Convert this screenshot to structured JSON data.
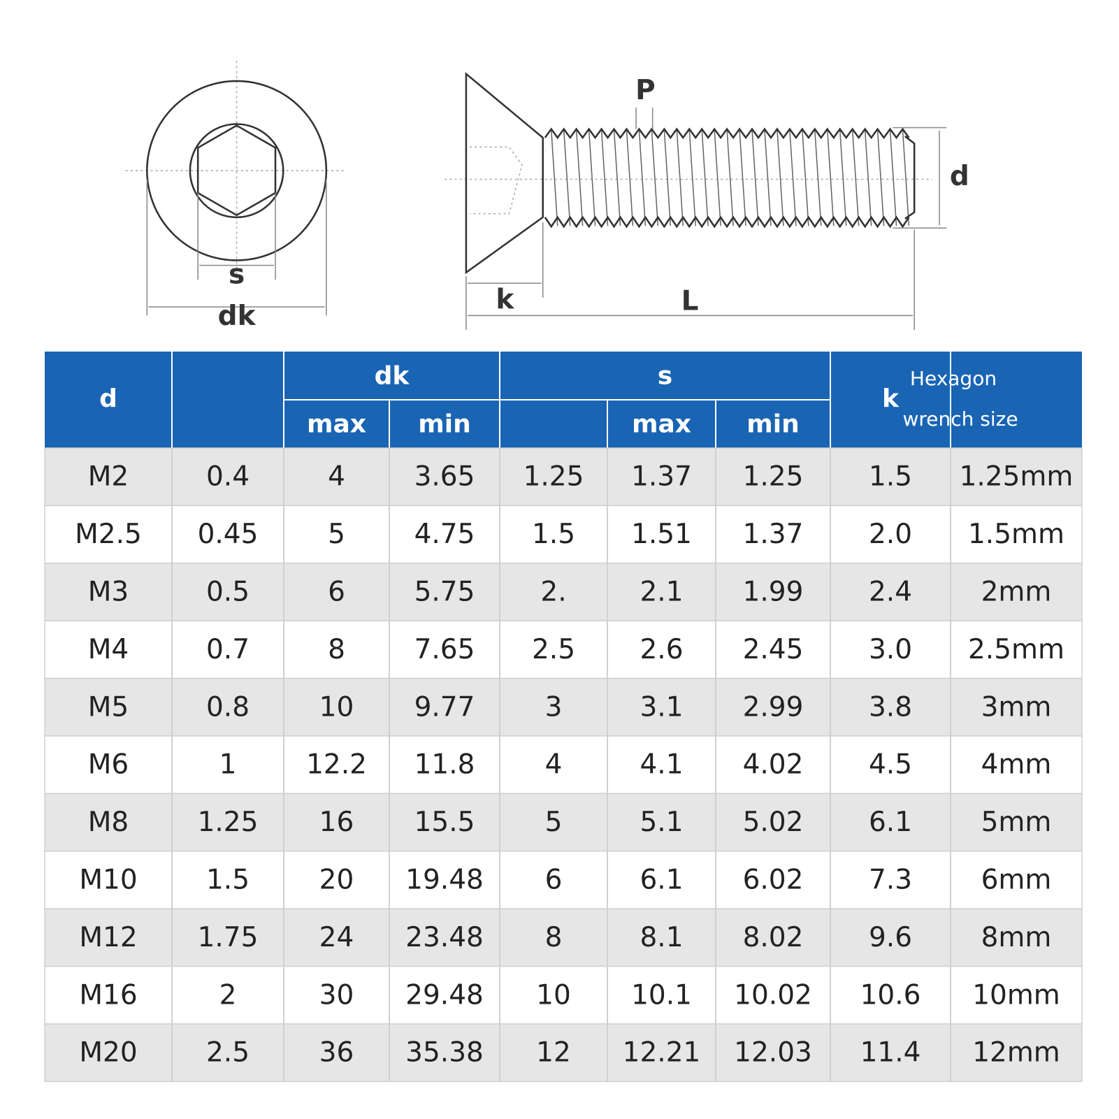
{
  "diagram": {
    "labels": {
      "s": "s",
      "dk": "dk",
      "p": "P",
      "d": "d",
      "k": "k",
      "l": "L"
    }
  },
  "table": {
    "header": {
      "d": "d",
      "dk": "dk",
      "s": "s",
      "k": "k",
      "dk_max": "max",
      "dk_min": "min",
      "s_max": "max",
      "s_min": "min",
      "wrench": [
        "Hexagon",
        "wrench size"
      ]
    },
    "rows": [
      [
        "M2",
        "0.4",
        "4",
        "3.65",
        "1.25",
        "1.37",
        "1.25",
        "1.5",
        "1.25mm"
      ],
      [
        "M2.5",
        "0.45",
        "5",
        "4.75",
        "1.5",
        "1.51",
        "1.37",
        "2.0",
        "1.5mm"
      ],
      [
        "M3",
        "0.5",
        "6",
        "5.75",
        "2.",
        "2.1",
        "1.99",
        "2.4",
        "2mm"
      ],
      [
        "M4",
        "0.7",
        "8",
        "7.65",
        "2.5",
        "2.6",
        "2.45",
        "3.0",
        "2.5mm"
      ],
      [
        "M5",
        "0.8",
        "10",
        "9.77",
        "3",
        "3.1",
        "2.99",
        "3.8",
        "3mm"
      ],
      [
        "M6",
        "1",
        "12.2",
        "11.8",
        "4",
        "4.1",
        "4.02",
        "4.5",
        "4mm"
      ],
      [
        "M8",
        "1.25",
        "16",
        "15.5",
        "5",
        "5.1",
        "5.02",
        "6.1",
        "5mm"
      ],
      [
        "M10",
        "1.5",
        "20",
        "19.48",
        "6",
        "6.1",
        "6.02",
        "7.3",
        "6mm"
      ],
      [
        "M12",
        "1.75",
        "24",
        "23.48",
        "8",
        "8.1",
        "8.02",
        "9.6",
        "8mm"
      ],
      [
        "M16",
        "2",
        "30",
        "29.48",
        "10",
        "10.1",
        "10.02",
        "10.6",
        "10mm"
      ],
      [
        "M20",
        "2.5",
        "36",
        "35.38",
        "12",
        "12.21",
        "12.03",
        "11.4",
        "12mm"
      ]
    ]
  }
}
